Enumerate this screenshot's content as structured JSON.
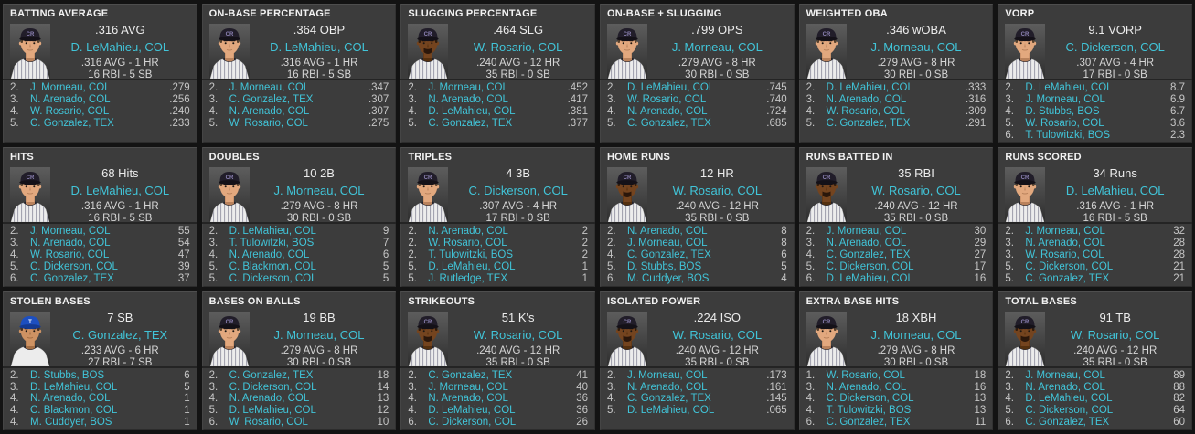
{
  "colors": {
    "accent_link": "#41c4d8",
    "panel_bg": "#3c3c3c",
    "page_bg": "#131313",
    "title_text": "#f2f2f2",
    "stat_text": "#d5d5d5",
    "rank_value_text": "#c6c6c6",
    "divider": "#242424"
  },
  "teams": {
    "COL": {
      "cap": "#211d29",
      "brim": "#141118",
      "logo": "CR",
      "logo_color": "#8d83b5",
      "pinstripes": true
    },
    "TEX": {
      "cap": "#1d4fc0",
      "brim": "#143a92",
      "logo": "T",
      "logo_color": "#ffffff",
      "pinstripes": false
    }
  },
  "skin_tones": {
    "light": {
      "base": "#e2a87e",
      "shade": "#b9825c",
      "hair": "#2a2014"
    },
    "medium": {
      "base": "#cd9263",
      "shade": "#a26d43",
      "hair": "#1d130a"
    },
    "dark": {
      "base": "#74441f",
      "shade": "#54300f",
      "hair": "#170f08"
    }
  },
  "panels": [
    {
      "title": "BATTING AVERAGE",
      "leader_value": ".316 AVG",
      "leader_name": "D. LeMahieu, COL",
      "leader_line1": ".316 AVG - 1 HR",
      "leader_line2": "16 RBI - 5 SB",
      "photo": {
        "team": "COL",
        "skin": "light",
        "goatee": false
      },
      "list": [
        {
          "rank": "2.",
          "name": "J. Morneau, COL",
          "value": ".279"
        },
        {
          "rank": "3.",
          "name": "N. Arenado, COL",
          "value": ".256"
        },
        {
          "rank": "4.",
          "name": "W. Rosario, COL",
          "value": ".240"
        },
        {
          "rank": "5.",
          "name": "C. Gonzalez, TEX",
          "value": ".233"
        }
      ]
    },
    {
      "title": "ON-BASE PERCENTAGE",
      "leader_value": ".364 OBP",
      "leader_name": "D. LeMahieu, COL",
      "leader_line1": ".316 AVG - 1 HR",
      "leader_line2": "16 RBI - 5 SB",
      "photo": {
        "team": "COL",
        "skin": "light",
        "goatee": false
      },
      "list": [
        {
          "rank": "2.",
          "name": "J. Morneau, COL",
          "value": ".347"
        },
        {
          "rank": "3.",
          "name": "C. Gonzalez, TEX",
          "value": ".307"
        },
        {
          "rank": "4.",
          "name": "N. Arenado, COL",
          "value": ".307"
        },
        {
          "rank": "5.",
          "name": "W. Rosario, COL",
          "value": ".275"
        }
      ]
    },
    {
      "title": "SLUGGING PERCENTAGE",
      "leader_value": ".464 SLG",
      "leader_name": "W. Rosario, COL",
      "leader_line1": ".240 AVG - 12 HR",
      "leader_line2": "35 RBI - 0 SB",
      "photo": {
        "team": "COL",
        "skin": "dark",
        "goatee": true
      },
      "list": [
        {
          "rank": "2.",
          "name": "J. Morneau, COL",
          "value": ".452"
        },
        {
          "rank": "3.",
          "name": "N. Arenado, COL",
          "value": ".417"
        },
        {
          "rank": "4.",
          "name": "D. LeMahieu, COL",
          "value": ".381"
        },
        {
          "rank": "5.",
          "name": "C. Gonzalez, TEX",
          "value": ".377"
        }
      ]
    },
    {
      "title": "ON-BASE + SLUGGING",
      "leader_value": ".799 OPS",
      "leader_name": "J. Morneau, COL",
      "leader_line1": ".279 AVG - 8 HR",
      "leader_line2": "30 RBI - 0 SB",
      "photo": {
        "team": "COL",
        "skin": "light",
        "goatee": false
      },
      "list": [
        {
          "rank": "2.",
          "name": "D. LeMahieu, COL",
          "value": ".745"
        },
        {
          "rank": "3.",
          "name": "W. Rosario, COL",
          "value": ".740"
        },
        {
          "rank": "4.",
          "name": "N. Arenado, COL",
          "value": ".724"
        },
        {
          "rank": "5.",
          "name": "C. Gonzalez, TEX",
          "value": ".685"
        }
      ]
    },
    {
      "title": "WEIGHTED OBA",
      "leader_value": ".346 wOBA",
      "leader_name": "J. Morneau, COL",
      "leader_line1": ".279 AVG - 8 HR",
      "leader_line2": "30 RBI - 0 SB",
      "photo": {
        "team": "COL",
        "skin": "light",
        "goatee": false
      },
      "list": [
        {
          "rank": "2.",
          "name": "D. LeMahieu, COL",
          "value": ".333"
        },
        {
          "rank": "3.",
          "name": "N. Arenado, COL",
          "value": ".316"
        },
        {
          "rank": "4.",
          "name": "W. Rosario, COL",
          "value": ".309"
        },
        {
          "rank": "5.",
          "name": "C. Gonzalez, TEX",
          "value": ".291"
        }
      ]
    },
    {
      "title": "VORP",
      "leader_value": "9.1 VORP",
      "leader_name": "C. Dickerson, COL",
      "leader_line1": ".307 AVG - 4 HR",
      "leader_line2": "17 RBI - 0 SB",
      "photo": {
        "team": "COL",
        "skin": "light",
        "goatee": false
      },
      "list": [
        {
          "rank": "2.",
          "name": "D. LeMahieu, COL",
          "value": "8.7"
        },
        {
          "rank": "3.",
          "name": "J. Morneau, COL",
          "value": "6.9"
        },
        {
          "rank": "4.",
          "name": "D. Stubbs, BOS",
          "value": "6.7"
        },
        {
          "rank": "5.",
          "name": "W. Rosario, COL",
          "value": "3.6"
        },
        {
          "rank": "6.",
          "name": "T. Tulowitzki, BOS",
          "value": "2.3"
        }
      ]
    },
    {
      "title": "HITS",
      "leader_value": "68 Hits",
      "leader_name": "D. LeMahieu, COL",
      "leader_line1": ".316 AVG - 1 HR",
      "leader_line2": "16 RBI - 5 SB",
      "photo": {
        "team": "COL",
        "skin": "light",
        "goatee": false
      },
      "list": [
        {
          "rank": "2.",
          "name": "J. Morneau, COL",
          "value": "55"
        },
        {
          "rank": "3.",
          "name": "N. Arenado, COL",
          "value": "54"
        },
        {
          "rank": "4.",
          "name": "W. Rosario, COL",
          "value": "47"
        },
        {
          "rank": "5.",
          "name": "C. Dickerson, COL",
          "value": "39"
        },
        {
          "rank": "6.",
          "name": "C. Gonzalez, TEX",
          "value": "37"
        }
      ]
    },
    {
      "title": "DOUBLES",
      "leader_value": "10 2B",
      "leader_name": "J. Morneau, COL",
      "leader_line1": ".279 AVG - 8 HR",
      "leader_line2": "30 RBI - 0 SB",
      "photo": {
        "team": "COL",
        "skin": "light",
        "goatee": false
      },
      "list": [
        {
          "rank": "2.",
          "name": "D. LeMahieu, COL",
          "value": "9"
        },
        {
          "rank": "3.",
          "name": "T. Tulowitzki, BOS",
          "value": "7"
        },
        {
          "rank": "4.",
          "name": "N. Arenado, COL",
          "value": "6"
        },
        {
          "rank": "5.",
          "name": "C. Blackmon, COL",
          "value": "5"
        },
        {
          "rank": "5.",
          "name": "C. Dickerson, COL",
          "value": "5"
        }
      ]
    },
    {
      "title": "TRIPLES",
      "leader_value": "4 3B",
      "leader_name": "C. Dickerson, COL",
      "leader_line1": ".307 AVG - 4 HR",
      "leader_line2": "17 RBI - 0 SB",
      "photo": {
        "team": "COL",
        "skin": "light",
        "goatee": false
      },
      "list": [
        {
          "rank": "2.",
          "name": "N. Arenado, COL",
          "value": "2"
        },
        {
          "rank": "2.",
          "name": "W. Rosario, COL",
          "value": "2"
        },
        {
          "rank": "2.",
          "name": "T. Tulowitzki, BOS",
          "value": "2"
        },
        {
          "rank": "5.",
          "name": "D. LeMahieu, COL",
          "value": "1"
        },
        {
          "rank": "5.",
          "name": "J. Rutledge, TEX",
          "value": "1"
        }
      ]
    },
    {
      "title": "HOME RUNS",
      "leader_value": "12 HR",
      "leader_name": "W. Rosario, COL",
      "leader_line1": ".240 AVG - 12 HR",
      "leader_line2": "35 RBI - 0 SB",
      "photo": {
        "team": "COL",
        "skin": "dark",
        "goatee": true
      },
      "list": [
        {
          "rank": "2.",
          "name": "N. Arenado, COL",
          "value": "8"
        },
        {
          "rank": "2.",
          "name": "J. Morneau, COL",
          "value": "8"
        },
        {
          "rank": "4.",
          "name": "C. Gonzalez, TEX",
          "value": "6"
        },
        {
          "rank": "5.",
          "name": "D. Stubbs, BOS",
          "value": "5"
        },
        {
          "rank": "6.",
          "name": "M. Cuddyer, BOS",
          "value": "4"
        }
      ]
    },
    {
      "title": "RUNS BATTED IN",
      "leader_value": "35 RBI",
      "leader_name": "W. Rosario, COL",
      "leader_line1": ".240 AVG - 12 HR",
      "leader_line2": "35 RBI - 0 SB",
      "photo": {
        "team": "COL",
        "skin": "dark",
        "goatee": true
      },
      "list": [
        {
          "rank": "2.",
          "name": "J. Morneau, COL",
          "value": "30"
        },
        {
          "rank": "3.",
          "name": "N. Arenado, COL",
          "value": "29"
        },
        {
          "rank": "4.",
          "name": "C. Gonzalez, TEX",
          "value": "27"
        },
        {
          "rank": "5.",
          "name": "C. Dickerson, COL",
          "value": "17"
        },
        {
          "rank": "6.",
          "name": "D. LeMahieu, COL",
          "value": "16"
        }
      ]
    },
    {
      "title": "RUNS SCORED",
      "leader_value": "34 Runs",
      "leader_name": "D. LeMahieu, COL",
      "leader_line1": ".316 AVG - 1 HR",
      "leader_line2": "16 RBI - 5 SB",
      "photo": {
        "team": "COL",
        "skin": "light",
        "goatee": false
      },
      "list": [
        {
          "rank": "2.",
          "name": "J. Morneau, COL",
          "value": "32"
        },
        {
          "rank": "3.",
          "name": "N. Arenado, COL",
          "value": "28"
        },
        {
          "rank": "3.",
          "name": "W. Rosario, COL",
          "value": "28"
        },
        {
          "rank": "5.",
          "name": "C. Dickerson, COL",
          "value": "21"
        },
        {
          "rank": "5.",
          "name": "C. Gonzalez, TEX",
          "value": "21"
        }
      ]
    },
    {
      "title": "STOLEN BASES",
      "leader_value": "7 SB",
      "leader_name": "C. Gonzalez, TEX",
      "leader_line1": ".233 AVG - 6 HR",
      "leader_line2": "27 RBI - 7 SB",
      "photo": {
        "team": "TEX",
        "skin": "medium",
        "goatee": false
      },
      "list": [
        {
          "rank": "2.",
          "name": "D. Stubbs, BOS",
          "value": "6"
        },
        {
          "rank": "3.",
          "name": "D. LeMahieu, COL",
          "value": "5"
        },
        {
          "rank": "4.",
          "name": "N. Arenado, COL",
          "value": "1"
        },
        {
          "rank": "4.",
          "name": "C. Blackmon, COL",
          "value": "1"
        },
        {
          "rank": "4.",
          "name": "M. Cuddyer, BOS",
          "value": "1"
        }
      ]
    },
    {
      "title": "BASES ON BALLS",
      "leader_value": "19 BB",
      "leader_name": "J. Morneau, COL",
      "leader_line1": ".279 AVG - 8 HR",
      "leader_line2": "30 RBI - 0 SB",
      "photo": {
        "team": "COL",
        "skin": "light",
        "goatee": false
      },
      "list": [
        {
          "rank": "2.",
          "name": "C. Gonzalez, TEX",
          "value": "18"
        },
        {
          "rank": "3.",
          "name": "C. Dickerson, COL",
          "value": "14"
        },
        {
          "rank": "4.",
          "name": "N. Arenado, COL",
          "value": "13"
        },
        {
          "rank": "5.",
          "name": "D. LeMahieu, COL",
          "value": "12"
        },
        {
          "rank": "6.",
          "name": "W. Rosario, COL",
          "value": "10"
        }
      ]
    },
    {
      "title": "STRIKEOUTS",
      "leader_value": "51 K's",
      "leader_name": "W. Rosario, COL",
      "leader_line1": ".240 AVG - 12 HR",
      "leader_line2": "35 RBI - 0 SB",
      "photo": {
        "team": "COL",
        "skin": "dark",
        "goatee": true
      },
      "list": [
        {
          "rank": "2.",
          "name": "C. Gonzalez, TEX",
          "value": "41"
        },
        {
          "rank": "3.",
          "name": "J. Morneau, COL",
          "value": "40"
        },
        {
          "rank": "4.",
          "name": "N. Arenado, COL",
          "value": "36"
        },
        {
          "rank": "4.",
          "name": "D. LeMahieu, COL",
          "value": "36"
        },
        {
          "rank": "6.",
          "name": "C. Dickerson, COL",
          "value": "26"
        }
      ]
    },
    {
      "title": "ISOLATED POWER",
      "leader_value": ".224 ISO",
      "leader_name": "W. Rosario, COL",
      "leader_line1": ".240 AVG - 12 HR",
      "leader_line2": "35 RBI - 0 SB",
      "photo": {
        "team": "COL",
        "skin": "dark",
        "goatee": true
      },
      "list": [
        {
          "rank": "2.",
          "name": "J. Morneau, COL",
          "value": ".173"
        },
        {
          "rank": "3.",
          "name": "N. Arenado, COL",
          "value": ".161"
        },
        {
          "rank": "4.",
          "name": "C. Gonzalez, TEX",
          "value": ".145"
        },
        {
          "rank": "5.",
          "name": "D. LeMahieu, COL",
          "value": ".065"
        }
      ]
    },
    {
      "title": "EXTRA BASE HITS",
      "leader_value": "18 XBH",
      "leader_name": "J. Morneau, COL",
      "leader_line1": ".279 AVG - 8 HR",
      "leader_line2": "30 RBI - 0 SB",
      "photo": {
        "team": "COL",
        "skin": "light",
        "goatee": false
      },
      "list": [
        {
          "rank": "1.",
          "name": "W. Rosario, COL",
          "value": "18"
        },
        {
          "rank": "3.",
          "name": "N. Arenado, COL",
          "value": "16"
        },
        {
          "rank": "4.",
          "name": "C. Dickerson, COL",
          "value": "13"
        },
        {
          "rank": "4.",
          "name": "T. Tulowitzki, BOS",
          "value": "13"
        },
        {
          "rank": "6.",
          "name": "C. Gonzalez, TEX",
          "value": "11"
        }
      ]
    },
    {
      "title": "TOTAL BASES",
      "leader_value": "91 TB",
      "leader_name": "W. Rosario, COL",
      "leader_line1": ".240 AVG - 12 HR",
      "leader_line2": "35 RBI - 0 SB",
      "photo": {
        "team": "COL",
        "skin": "dark",
        "goatee": true
      },
      "list": [
        {
          "rank": "2.",
          "name": "J. Morneau, COL",
          "value": "89"
        },
        {
          "rank": "3.",
          "name": "N. Arenado, COL",
          "value": "88"
        },
        {
          "rank": "4.",
          "name": "D. LeMahieu, COL",
          "value": "82"
        },
        {
          "rank": "5.",
          "name": "C. Dickerson, COL",
          "value": "64"
        },
        {
          "rank": "6.",
          "name": "C. Gonzalez, TEX",
          "value": "60"
        }
      ]
    }
  ]
}
